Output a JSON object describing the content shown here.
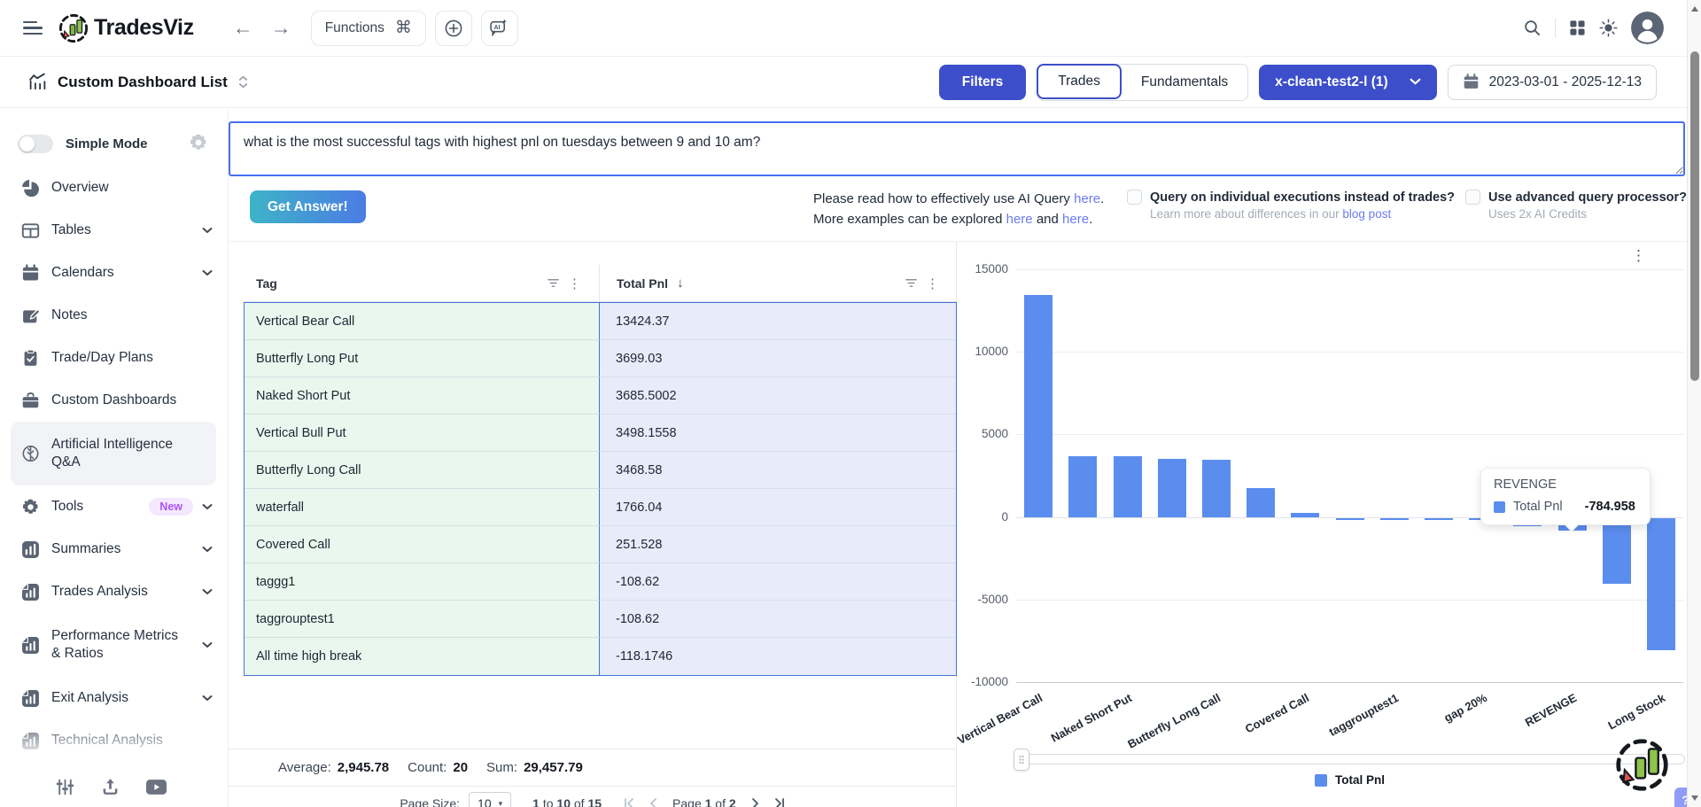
{
  "topnav": {
    "brand": "TradesViz",
    "functions_label": "Functions",
    "functions_shortcut": "⌘"
  },
  "secondary": {
    "title": "Custom Dashboard List",
    "filters": "Filters",
    "trades": "Trades",
    "fundamentals": "Fundamentals",
    "dashboard_select": "x-clean-test2-l (1)",
    "date_range": "2023-03-01 - 2025-12-13"
  },
  "sidebar": {
    "simple_mode_label": "Simple Mode",
    "items": [
      {
        "label": "Overview",
        "icon": "pie-chart-icon"
      },
      {
        "label": "Tables",
        "icon": "table-icon",
        "chevron": true
      },
      {
        "label": "Calendars",
        "icon": "calendar-icon",
        "chevron": true
      },
      {
        "label": "Notes",
        "icon": "note-icon"
      },
      {
        "label": "Trade/Day Plans",
        "icon": "clipboard-icon"
      },
      {
        "label": "Custom Dashboards",
        "icon": "briefcase-icon"
      },
      {
        "label": "Artificial Intelligence Q&A",
        "icon": "brain-icon",
        "active": true,
        "wrap": true
      },
      {
        "label": "Tools",
        "icon": "gear-icon",
        "badge": "New",
        "chevron": true
      },
      {
        "label": "Summaries",
        "icon": "bar-chart-icon",
        "chevron": true
      },
      {
        "label": "Trades Analysis",
        "icon": "doc-chart-icon",
        "chevron": true
      },
      {
        "label": "Performance Metrics & Ratios",
        "icon": "doc-chart-icon",
        "chevron": true,
        "wrap": true,
        "tall": true
      },
      {
        "label": "Exit Analysis",
        "icon": "doc-chart-icon",
        "chevron": true
      },
      {
        "label": "Technical Analysis",
        "icon": "doc-chart-icon",
        "clipped": true
      }
    ]
  },
  "query": {
    "text": "what is the most successful tags with highest pnl on tuesdays between 9 and 10 am?",
    "get_answer": "Get Answer!",
    "help_line1": "Please read how to effectively use AI Query",
    "help_link1": "here",
    "period1": ".",
    "help_line2": "More examples can be explored",
    "help_link2a": "here",
    "help_and": "and",
    "help_link2b": "here",
    "period2": ".",
    "opt1_label": "Query on individual executions instead of trades?",
    "opt1_sub": "Learn more about differences in our",
    "opt1_link": "blog post",
    "opt2_label": "Use advanced query processor?",
    "opt2_sub": "Uses 2x AI Credits"
  },
  "table": {
    "col_tag": "Tag",
    "col_pnl": "Total Pnl",
    "rows": [
      {
        "tag": "Vertical Bear Call",
        "pnl": "13424.37"
      },
      {
        "tag": "Butterfly Long Put",
        "pnl": "3699.03"
      },
      {
        "tag": "Naked Short Put",
        "pnl": "3685.5002"
      },
      {
        "tag": "Vertical Bull Put",
        "pnl": "3498.1558"
      },
      {
        "tag": "Butterfly Long Call",
        "pnl": "3468.58"
      },
      {
        "tag": "waterfall",
        "pnl": "1766.04"
      },
      {
        "tag": "Covered Call",
        "pnl": "251.528"
      },
      {
        "tag": "taggg1",
        "pnl": "-108.62"
      },
      {
        "tag": "taggrouptest1",
        "pnl": "-108.62"
      },
      {
        "tag": "All time high break",
        "pnl": "-118.1746"
      }
    ],
    "stats": {
      "average_label": "Average:",
      "average": "2,945.78",
      "count_label": "Count:",
      "count": "20",
      "sum_label": "Sum:",
      "sum": "29,457.79"
    },
    "pagination": {
      "page_size_label": "Page Size:",
      "page_size": "10",
      "range": "1 to 10 of 15",
      "page": "Page 1 of 2"
    }
  },
  "chart_data": {
    "type": "bar",
    "categories": [
      "Vertical Bear Call",
      "Butterfly Long Put",
      "Naked Short Put",
      "Vertical Bull Put",
      "Butterfly Long Call",
      "waterfall",
      "Covered Call",
      "taggg1",
      "taggrouptest1",
      "All time high break",
      "gap 20%",
      "",
      "REVENGE",
      "",
      "Long Stock"
    ],
    "series": [
      {
        "name": "Total Pnl",
        "color": "#5b8def",
        "values": [
          13424.37,
          3699.03,
          3685.5002,
          3498.1558,
          3468.58,
          1766.04,
          251.528,
          -108.62,
          -108.62,
          -118.1746,
          -150,
          -480,
          -784.958,
          -4000,
          -8000
        ]
      }
    ],
    "visible_tick_labels": [
      "Vertical Bear Call",
      "Naked Short Put",
      "Butterfly Long Call",
      "Covered Call",
      "taggrouptest1",
      "gap 20%",
      "REVENGE",
      "Long Stock"
    ],
    "tick_indices": [
      0,
      2,
      4,
      6,
      8,
      10,
      12,
      14
    ],
    "ylim": [
      -10000,
      15000
    ],
    "yticks": [
      15000,
      10000,
      5000,
      0,
      -5000,
      -10000
    ],
    "grid": true,
    "legend": {
      "position": "bottom",
      "label": "Total Pnl"
    },
    "tooltip": {
      "title": "REVENGE",
      "series": "Total Pnl",
      "value": "-784.958",
      "bar_index": 12
    }
  },
  "misc": {
    "help_badge": "?"
  }
}
